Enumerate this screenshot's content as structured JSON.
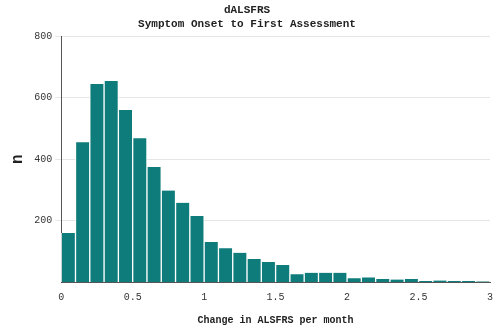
{
  "chart_data": {
    "type": "histogram",
    "title": "dALSFRS",
    "subtitle": "Symptom Onset to First Assessment",
    "x_label": "Change in ALSFRS per month",
    "y_label": "n",
    "bins": [
      0,
      0.1,
      0.2,
      0.3,
      0.4,
      0.5,
      0.6,
      0.7,
      0.8,
      0.9,
      1,
      1.1,
      1.2,
      1.3,
      1.4,
      1.5,
      1.6,
      1.7,
      1.8,
      1.9,
      2,
      2.1,
      2.2,
      2.3,
      2.4,
      2.5,
      2.6,
      2.7,
      2.8,
      2.9,
      3
    ],
    "values": [
      160,
      455,
      645,
      655,
      560,
      468,
      375,
      298,
      258,
      215,
      130,
      110,
      95,
      75,
      65,
      55,
      25,
      30,
      30,
      30,
      12,
      15,
      10,
      8,
      10,
      3,
      5,
      3,
      3,
      2
    ],
    "color": "#0e7c7b",
    "xlim": [
      0,
      3
    ],
    "xticks": [
      0,
      0.5,
      1,
      1.5,
      2,
      2.5,
      3
    ],
    "ylim": [
      0,
      800
    ],
    "yticks": [
      200,
      400,
      600,
      800
    ],
    "grid": true
  }
}
